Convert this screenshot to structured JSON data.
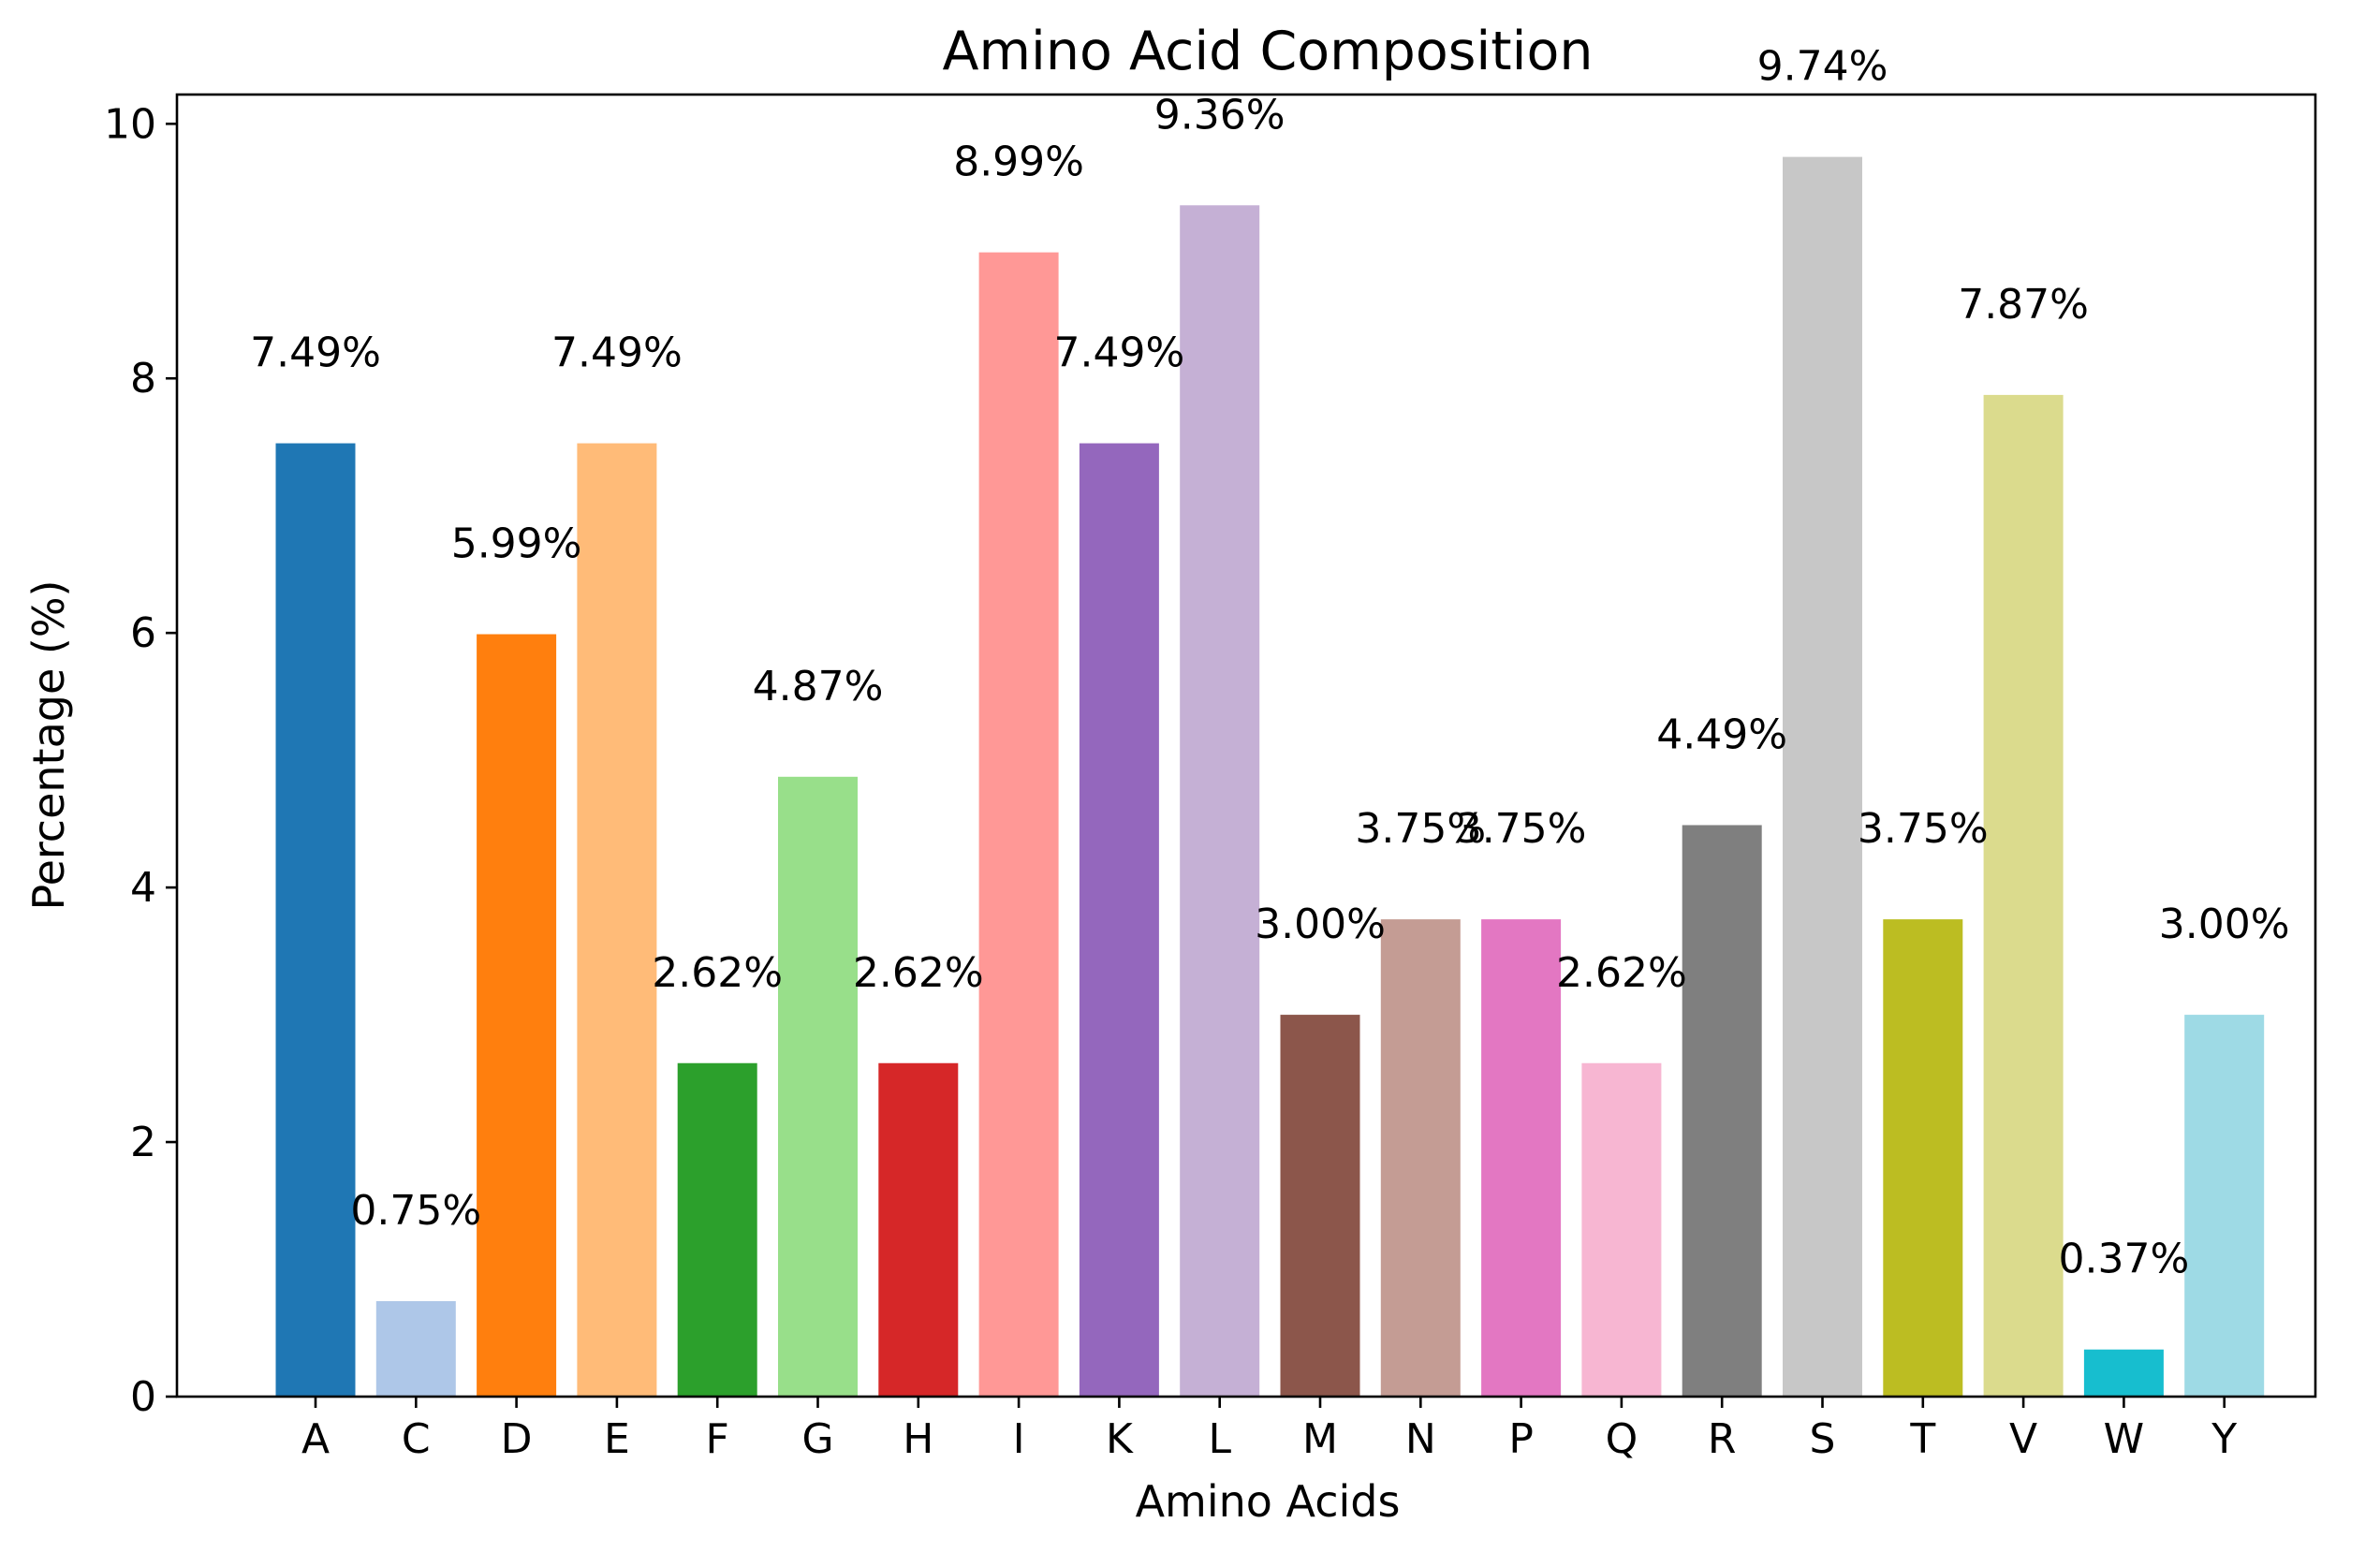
{
  "chart_data": {
    "type": "bar",
    "title": "Amino Acid Composition",
    "xlabel": "Amino Acids",
    "ylabel": "Percentage (%)",
    "ylim": [
      0,
      10.23
    ],
    "yticks": [
      0,
      2,
      4,
      6,
      8,
      10
    ],
    "grid": false,
    "categories": [
      "A",
      "C",
      "D",
      "E",
      "F",
      "G",
      "H",
      "I",
      "K",
      "L",
      "M",
      "N",
      "P",
      "Q",
      "R",
      "S",
      "T",
      "V",
      "W",
      "Y"
    ],
    "values": [
      7.49,
      0.75,
      5.99,
      7.49,
      2.62,
      4.87,
      2.62,
      8.99,
      7.49,
      9.36,
      3.0,
      3.75,
      3.75,
      2.62,
      4.49,
      9.74,
      3.75,
      7.87,
      0.37,
      3.0
    ],
    "data_labels": [
      "7.49%",
      "0.75%",
      "5.99%",
      "7.49%",
      "2.62%",
      "4.87%",
      "2.62%",
      "8.99%",
      "7.49%",
      "9.36%",
      "3.00%",
      "3.75%",
      "3.75%",
      "2.62%",
      "4.49%",
      "9.74%",
      "3.75%",
      "7.87%",
      "0.37%",
      "3.00%"
    ],
    "colors": [
      "#1f77b4",
      "#aec7e8",
      "#ff7f0e",
      "#ffbb78",
      "#2ca02c",
      "#98df8a",
      "#d62728",
      "#ff9896",
      "#9467bd",
      "#c5b0d5",
      "#8c564b",
      "#c49c94",
      "#e377c2",
      "#f7b6d2",
      "#7f7f7f",
      "#c7c7c7",
      "#bcbd22",
      "#dbdb8d",
      "#17becf",
      "#9edae5"
    ]
  }
}
